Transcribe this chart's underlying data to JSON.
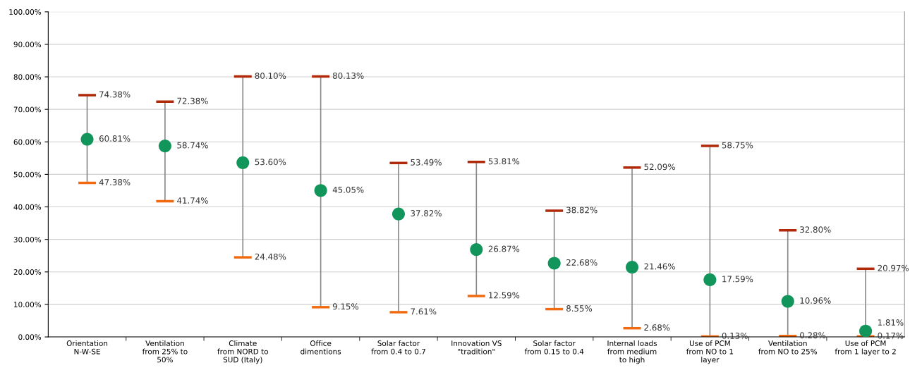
{
  "chart_data": {
    "type": "scatter",
    "categories": [
      "Orientation\nN-W-SE",
      "Ventilation\nfrom 25% to\n50%",
      "Climate\nfrom NORD to\nSUD (Italy)",
      "Office\ndimentions",
      "Solar factor\nfrom 0.4 to 0.7",
      "Innovation VS\n\"tradition\"",
      "Solar factor\nfrom 0.15 to 0.4",
      "Internal loads\nfrom medium\nto high",
      "Use of PCM\nfrom NO to 1\nlayer",
      "Ventilation\nfrom NO to 25%",
      "Use of PCM\nfrom 1 layer to 2"
    ],
    "series": [
      {
        "marker": "circle",
        "color": "#12955a",
        "values": [
          60.81,
          58.74,
          53.6,
          45.05,
          37.82,
          26.87,
          22.68,
          21.46,
          17.59,
          10.96,
          1.81
        ],
        "errors": [
          [
            47.38,
            74.38
          ],
          [
            41.74,
            72.38
          ],
          [
            24.48,
            80.1
          ],
          [
            9.15,
            80.13
          ],
          [
            7.61,
            53.49
          ],
          [
            12.59,
            53.81
          ],
          [
            8.55,
            38.82
          ],
          [
            2.68,
            52.09
          ],
          [
            0.13,
            58.75
          ],
          [
            0.28,
            32.8
          ],
          [
            0.17,
            20.97
          ]
        ],
        "value_labels": [
          "60.81%",
          "58.74%",
          "53.60%",
          "45.05%",
          "37.82%",
          "26.87%",
          "22.68%",
          "21.46%",
          "17.59%",
          "10.96%",
          "1.81%"
        ]
      }
    ],
    "annotations": [
      {
        "text": "74.38%",
        "x": "Orientation\nN-W-SE",
        "y": 74.38
      },
      {
        "text": "47.38%",
        "x": "Orientation\nN-W-SE",
        "y": 47.38
      },
      {
        "text": "72.38%",
        "x": "Ventilation\nfrom 25% to\n50%",
        "y": 72.38
      },
      {
        "text": "41.74%",
        "x": "Ventilation\nfrom 25% to\n50%",
        "y": 41.74
      },
      {
        "text": "80.10%",
        "x": "Climate\nfrom NORD to\nSUD (Italy)",
        "y": 80.1
      },
      {
        "text": "24.48%",
        "x": "Climate\nfrom NORD to\nSUD (Italy)",
        "y": 24.48
      },
      {
        "text": "80.13%",
        "x": "Office\ndimentions",
        "y": 80.13
      },
      {
        "text": "9.15%",
        "x": "Office\ndimentions",
        "y": 9.15
      },
      {
        "text": "53.49%",
        "x": "Solar factor\nfrom 0.4 to 0.7",
        "y": 53.49
      },
      {
        "text": "7.61%",
        "x": "Solar factor\nfrom 0.4 to 0.7",
        "y": 7.61
      },
      {
        "text": "53.81%",
        "x": "Innovation VS\n\"tradition\"",
        "y": 53.81
      },
      {
        "text": "12.59%",
        "x": "Innovation VS\n\"tradition\"",
        "y": 12.59
      },
      {
        "text": "38.82%",
        "x": "Solar factor\nfrom 0.15 to 0.4",
        "y": 38.82
      },
      {
        "text": "8.55%",
        "x": "Solar factor\nfrom 0.15 to 0.4",
        "y": 8.55
      },
      {
        "text": "52.09%",
        "x": "Internal loads\nfrom medium\nto high",
        "y": 52.09
      },
      {
        "text": "2.68%",
        "x": "Internal loads\nfrom medium\nto high",
        "y": 2.68
      },
      {
        "text": "58.75%",
        "x": "Use of PCM\nfrom NO to 1\nlayer",
        "y": 58.75
      },
      {
        "text": "0.13%",
        "x": "Use of PCM\nfrom NO to 1\nlayer",
        "y": 0.13
      },
      {
        "text": "32.80%",
        "x": "Ventilation\nfrom NO to 25%",
        "y": 32.8
      },
      {
        "text": "0.28%",
        "x": "Ventilation\nfrom NO to 25%",
        "y": 0.28
      },
      {
        "text": "20.97%",
        "x": "Use of PCM\nfrom 1 layer to 2",
        "y": 20.97
      },
      {
        "text": "0.17%",
        "x": "Use of PCM\nfrom 1 layer to 2",
        "y": 0.17
      }
    ],
    "ylim": [
      0,
      100
    ],
    "yticks": [
      {
        "value": 0,
        "label": "0.00%"
      },
      {
        "value": 10,
        "label": "10.00%"
      },
      {
        "value": 20,
        "label": "20.00%"
      },
      {
        "value": 30,
        "label": "30.00%"
      },
      {
        "value": 40,
        "label": "40.00%"
      },
      {
        "value": 50,
        "label": "50.00%"
      },
      {
        "value": 60,
        "label": "60.00%"
      },
      {
        "value": 70,
        "label": "70.00%"
      },
      {
        "value": 80,
        "label": "80.00%"
      },
      {
        "value": 90,
        "label": "90.00%"
      },
      {
        "value": 100,
        "label": "100.00%"
      }
    ],
    "grid": "y"
  }
}
